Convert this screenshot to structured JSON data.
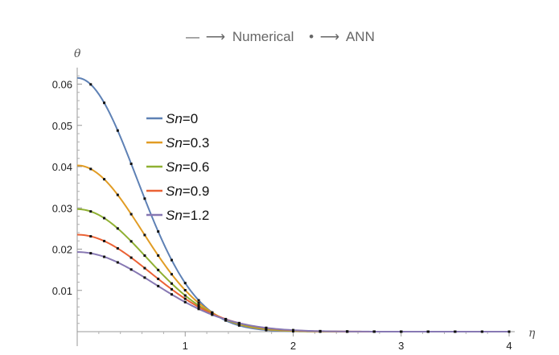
{
  "chart_data": {
    "type": "line",
    "title": "",
    "annotation": {
      "numerical_symbol": "—",
      "numerical_arrow": "⟶",
      "numerical_label": "Numerical",
      "ann_symbol": "•",
      "ann_arrow": "⟶",
      "ann_label": "ANN"
    },
    "xlabel": "η",
    "ylabel": "θ",
    "xlim": [
      0,
      4
    ],
    "ylim": [
      0,
      0.064
    ],
    "xticks": [
      1,
      2,
      3,
      4
    ],
    "xtick_labels": [
      "1",
      "2",
      "3",
      "4"
    ],
    "yticks": [
      0.01,
      0.02,
      0.03,
      0.04,
      0.05,
      0.06
    ],
    "ytick_labels": [
      "0.01",
      "0.02",
      "0.03",
      "0.04",
      "0.05",
      "0.06"
    ],
    "legend_position": "upper-left",
    "legend_var": "Sn",
    "ann_marker_x": [
      0.125,
      0.25,
      0.375,
      0.5,
      0.625,
      0.75,
      0.875,
      1.0,
      1.125,
      1.25,
      1.375,
      1.5,
      1.75,
      2.0,
      2.25,
      2.5,
      2.75,
      3.0,
      3.25,
      3.5,
      3.75,
      4.0
    ],
    "series": [
      {
        "name": "Sn=0",
        "legend_label": "=0",
        "color": "#5e81b5",
        "theta0": 0.0615,
        "sigma": 0.55
      },
      {
        "name": "Sn=0.3",
        "legend_label": "=0.3",
        "color": "#e19c24",
        "theta0": 0.0403,
        "sigma": 0.6
      },
      {
        "name": "Sn=0.6",
        "legend_label": "=0.6",
        "color": "#8fb032",
        "theta0": 0.0297,
        "sigma": 0.64
      },
      {
        "name": "Sn=0.9",
        "legend_label": "=0.9",
        "color": "#eb6235",
        "theta0": 0.0235,
        "sigma": 0.68
      },
      {
        "name": "Sn=1.2",
        "legend_label": "=1.2",
        "color": "#8778b3",
        "theta0": 0.0193,
        "sigma": 0.71
      }
    ]
  }
}
